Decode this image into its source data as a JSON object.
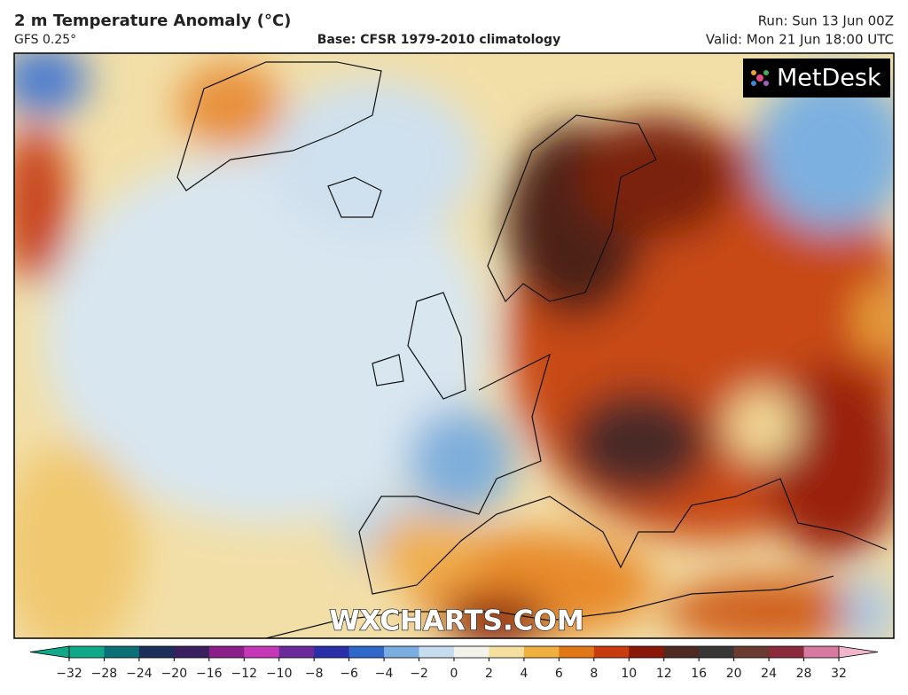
{
  "header": {
    "title": "2 m Temperature Anomaly (°C)",
    "model": "GFS 0.25°",
    "base": "Base: CFSR 1979-2010 climatology",
    "run": "Run: Sun 13 Jun 00Z",
    "valid": "Valid: Mon 21 Jun 18:00 UTC"
  },
  "map": {
    "logo": "MetDesk",
    "watermark": "WXCHARTS.COM"
  },
  "colorbar": {
    "ticks": [
      {
        "value": -32,
        "label": "−32"
      },
      {
        "value": -28,
        "label": "−28"
      },
      {
        "value": -24,
        "label": "−24"
      },
      {
        "value": -20,
        "label": "−20"
      },
      {
        "value": -16,
        "label": "−16"
      },
      {
        "value": -12,
        "label": "−12"
      },
      {
        "value": -10,
        "label": "−10"
      },
      {
        "value": -8,
        "label": "−8"
      },
      {
        "value": -6,
        "label": "−6"
      },
      {
        "value": -4,
        "label": "−4"
      },
      {
        "value": -2,
        "label": "−2"
      },
      0,
      2,
      4,
      6,
      8,
      10,
      12,
      16,
      20,
      24,
      28,
      32
    ],
    "colors": [
      "#10a888",
      "#0b6f78",
      "#1b2f5a",
      "#3a1f5e",
      "#8a1f8a",
      "#c438b8",
      "#6a2a9a",
      "#2a2fa8",
      "#2f68c8",
      "#7aaee0",
      "#c6ddf0",
      "#f4f2ea",
      "#f6e0a0",
      "#f0b040",
      "#e07818",
      "#c83c10",
      "#8a1808",
      "#4e2a22",
      "#3a3636",
      "#6a3a30",
      "#8a2a3a",
      "#d87aa0",
      "#f2b6cc"
    ]
  }
}
